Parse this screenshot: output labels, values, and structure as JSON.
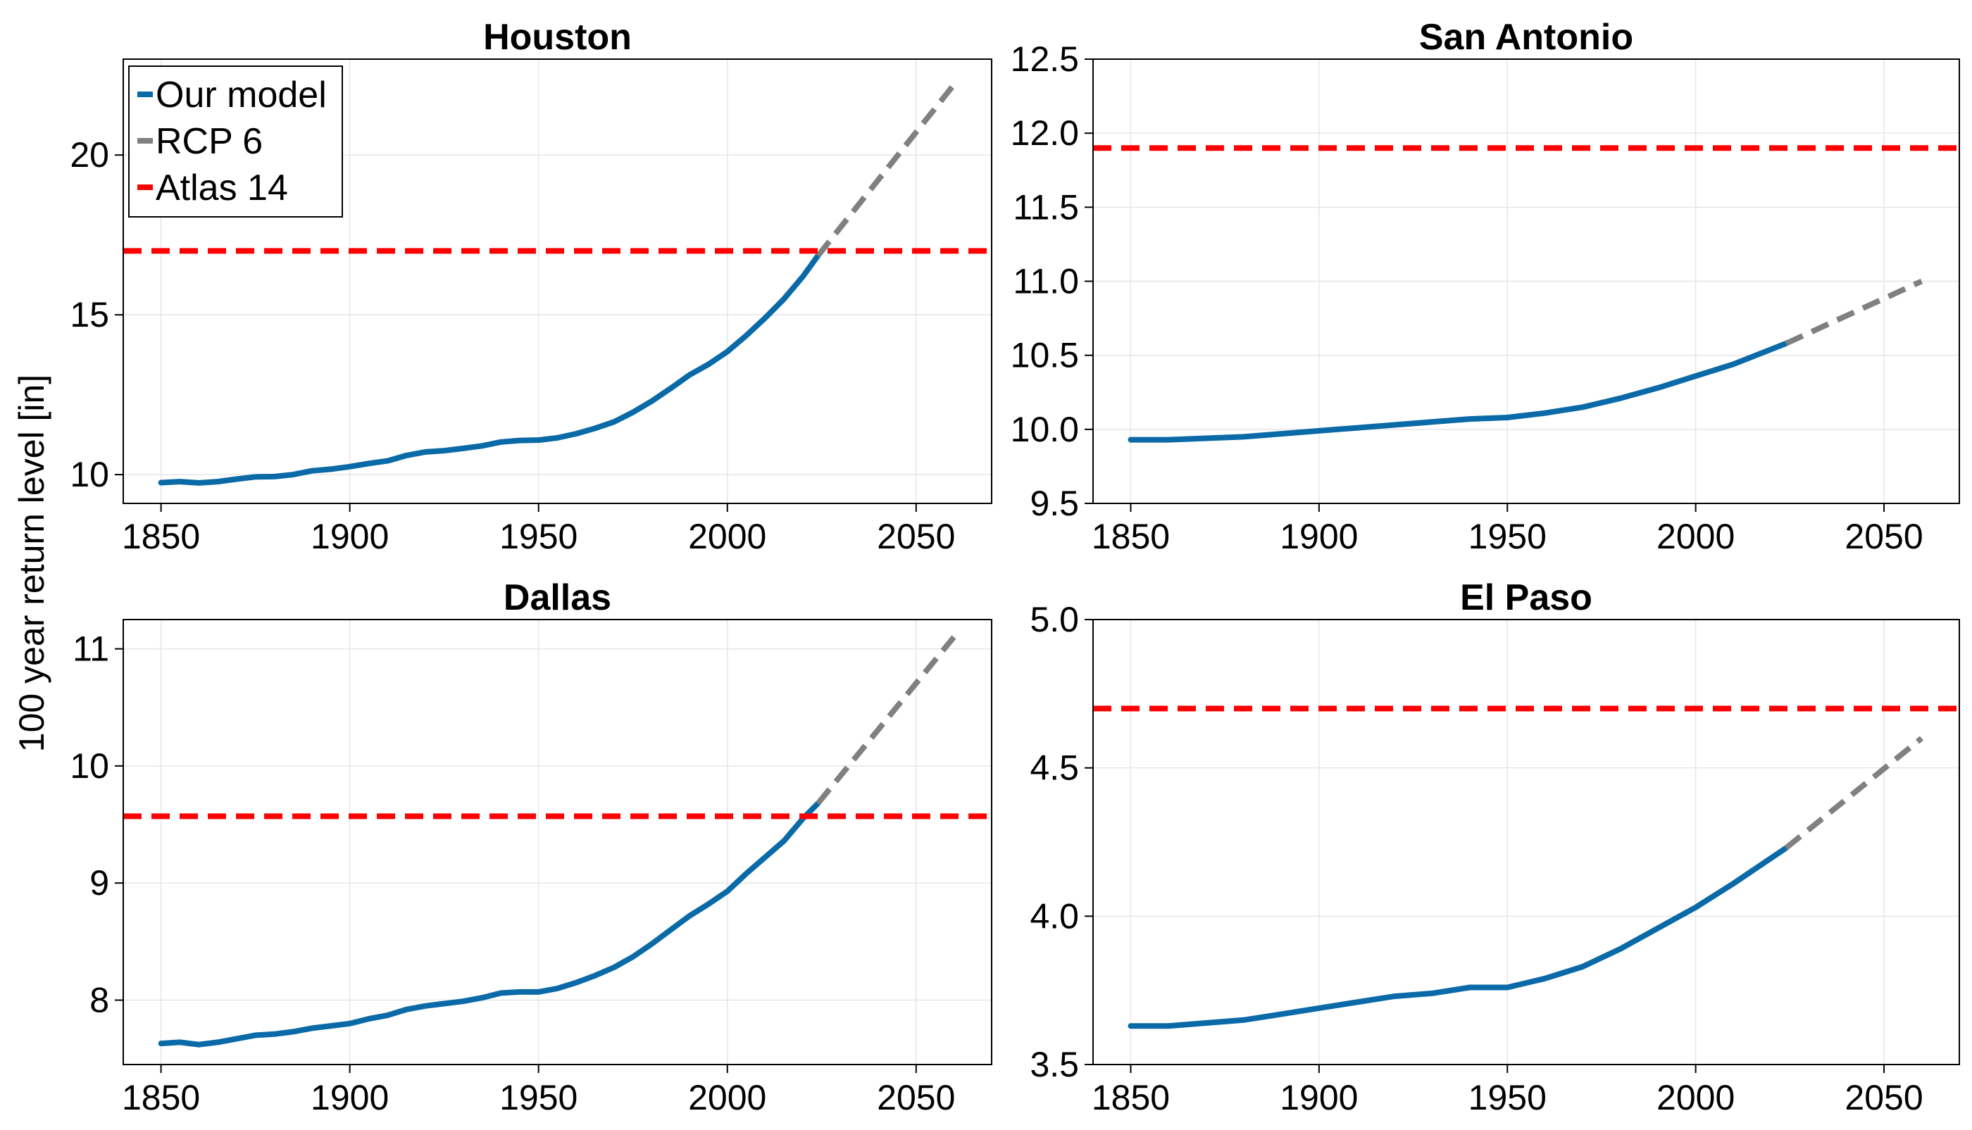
{
  "figure": {
    "ylabel": "100 year return level [in]",
    "legend": {
      "placement": "top-left of first panel",
      "entries": [
        {
          "label": "Our model",
          "color": "#0a6aa8"
        },
        {
          "label": "RCP 6",
          "color": "#808080"
        },
        {
          "label": "Atlas 14",
          "color": "#ff0000"
        }
      ]
    },
    "colors": {
      "model": "#0a6aa8",
      "rcp": "#808080",
      "atlas": "#ff0000",
      "grid": "#e6e6e6"
    }
  },
  "chart_data": [
    {
      "type": "line",
      "title": "Houston",
      "xlim": [
        1840,
        2070
      ],
      "ylim": [
        9.1,
        23.0
      ],
      "xticks": [
        1850,
        1900,
        1950,
        2000,
        2050
      ],
      "yticks": [
        10,
        15,
        20
      ],
      "grid": true,
      "series": [
        {
          "name": "Our model",
          "style": "solid",
          "x": [
            1850,
            1855,
            1860,
            1865,
            1870,
            1875,
            1880,
            1885,
            1890,
            1895,
            1900,
            1905,
            1910,
            1915,
            1920,
            1925,
            1930,
            1935,
            1940,
            1945,
            1950,
            1955,
            1960,
            1965,
            1970,
            1975,
            1980,
            1985,
            1990,
            1995,
            2000,
            2005,
            2010,
            2015,
            2020,
            2024
          ],
          "y": [
            9.75,
            9.78,
            9.74,
            9.78,
            9.86,
            9.93,
            9.94,
            10.0,
            10.12,
            10.17,
            10.25,
            10.35,
            10.43,
            10.6,
            10.71,
            10.75,
            10.82,
            10.9,
            11.02,
            11.07,
            11.08,
            11.15,
            11.28,
            11.45,
            11.65,
            11.95,
            12.3,
            12.7,
            13.12,
            13.45,
            13.85,
            14.35,
            14.9,
            15.5,
            16.2,
            16.85
          ]
        },
        {
          "name": "RCP 6",
          "style": "dashed",
          "x": [
            2024,
            2060
          ],
          "y": [
            16.85,
            22.2
          ]
        },
        {
          "name": "Atlas 14",
          "style": "dashed-horizontal",
          "x": [
            1840,
            2070
          ],
          "y": [
            17.0,
            17.0
          ]
        }
      ]
    },
    {
      "type": "line",
      "title": "San Antonio",
      "xlim": [
        1840,
        2070
      ],
      "ylim": [
        9.5,
        12.5
      ],
      "xticks": [
        1850,
        1900,
        1950,
        2000,
        2050
      ],
      "yticks": [
        9.5,
        10.0,
        10.5,
        11.0,
        11.5,
        12.0,
        12.5
      ],
      "ytick_labels": [
        "9.5",
        "10.0",
        "10.5",
        "11.0",
        "11.5",
        "12.0",
        "12.5"
      ],
      "grid": true,
      "series": [
        {
          "name": "Our model",
          "style": "solid",
          "x": [
            1850,
            1860,
            1870,
            1880,
            1890,
            1900,
            1910,
            1920,
            1930,
            1940,
            1950,
            1960,
            1970,
            1980,
            1990,
            2000,
            2010,
            2024
          ],
          "y": [
            9.93,
            9.93,
            9.94,
            9.95,
            9.97,
            9.99,
            10.01,
            10.03,
            10.05,
            10.07,
            10.08,
            10.11,
            10.15,
            10.21,
            10.28,
            10.36,
            10.44,
            10.58
          ]
        },
        {
          "name": "RCP 6",
          "style": "dashed",
          "x": [
            2024,
            2060
          ],
          "y": [
            10.58,
            11.0
          ]
        },
        {
          "name": "Atlas 14",
          "style": "dashed-horizontal",
          "x": [
            1840,
            2070
          ],
          "y": [
            11.9,
            11.9
          ]
        }
      ]
    },
    {
      "type": "line",
      "title": "Dallas",
      "xlim": [
        1840,
        2070
      ],
      "ylim": [
        7.45,
        11.25
      ],
      "xticks": [
        1850,
        1900,
        1950,
        2000,
        2050
      ],
      "yticks": [
        8,
        9,
        10,
        11
      ],
      "grid": true,
      "series": [
        {
          "name": "Our model",
          "style": "solid",
          "x": [
            1850,
            1855,
            1860,
            1865,
            1870,
            1875,
            1880,
            1885,
            1890,
            1895,
            1900,
            1905,
            1910,
            1915,
            1920,
            1925,
            1930,
            1935,
            1940,
            1945,
            1950,
            1955,
            1960,
            1965,
            1970,
            1975,
            1980,
            1985,
            1990,
            1995,
            2000,
            2005,
            2010,
            2015,
            2020,
            2024
          ],
          "y": [
            7.63,
            7.64,
            7.62,
            7.64,
            7.67,
            7.7,
            7.71,
            7.73,
            7.76,
            7.78,
            7.8,
            7.84,
            7.87,
            7.92,
            7.95,
            7.97,
            7.99,
            8.02,
            8.06,
            8.07,
            8.07,
            8.1,
            8.15,
            8.21,
            8.28,
            8.37,
            8.48,
            8.6,
            8.72,
            8.82,
            8.93,
            9.08,
            9.22,
            9.36,
            9.55,
            9.68
          ]
        },
        {
          "name": "RCP 6",
          "style": "dashed",
          "x": [
            2024,
            2060
          ],
          "y": [
            9.68,
            11.1
          ]
        },
        {
          "name": "Atlas 14",
          "style": "dashed-horizontal",
          "x": [
            1840,
            2070
          ],
          "y": [
            9.57,
            9.57
          ]
        }
      ]
    },
    {
      "type": "line",
      "title": "El Paso",
      "xlim": [
        1840,
        2070
      ],
      "ylim": [
        3.5,
        5.0
      ],
      "xticks": [
        1850,
        1900,
        1950,
        2000,
        2050
      ],
      "yticks": [
        3.5,
        4.0,
        4.5,
        5.0
      ],
      "ytick_labels": [
        "3.5",
        "4.0",
        "4.5",
        "5.0"
      ],
      "grid": true,
      "series": [
        {
          "name": "Our model",
          "style": "solid",
          "x": [
            1850,
            1860,
            1870,
            1880,
            1890,
            1900,
            1910,
            1920,
            1930,
            1940,
            1950,
            1960,
            1970,
            1980,
            1990,
            2000,
            2010,
            2024
          ],
          "y": [
            3.63,
            3.63,
            3.64,
            3.65,
            3.67,
            3.69,
            3.71,
            3.73,
            3.74,
            3.76,
            3.76,
            3.79,
            3.83,
            3.89,
            3.96,
            4.03,
            4.11,
            4.23
          ]
        },
        {
          "name": "RCP 6",
          "style": "dashed",
          "x": [
            2024,
            2060
          ],
          "y": [
            4.23,
            4.6
          ]
        },
        {
          "name": "Atlas 14",
          "style": "dashed-horizontal",
          "x": [
            1840,
            2070
          ],
          "y": [
            4.7,
            4.7
          ]
        }
      ]
    }
  ]
}
